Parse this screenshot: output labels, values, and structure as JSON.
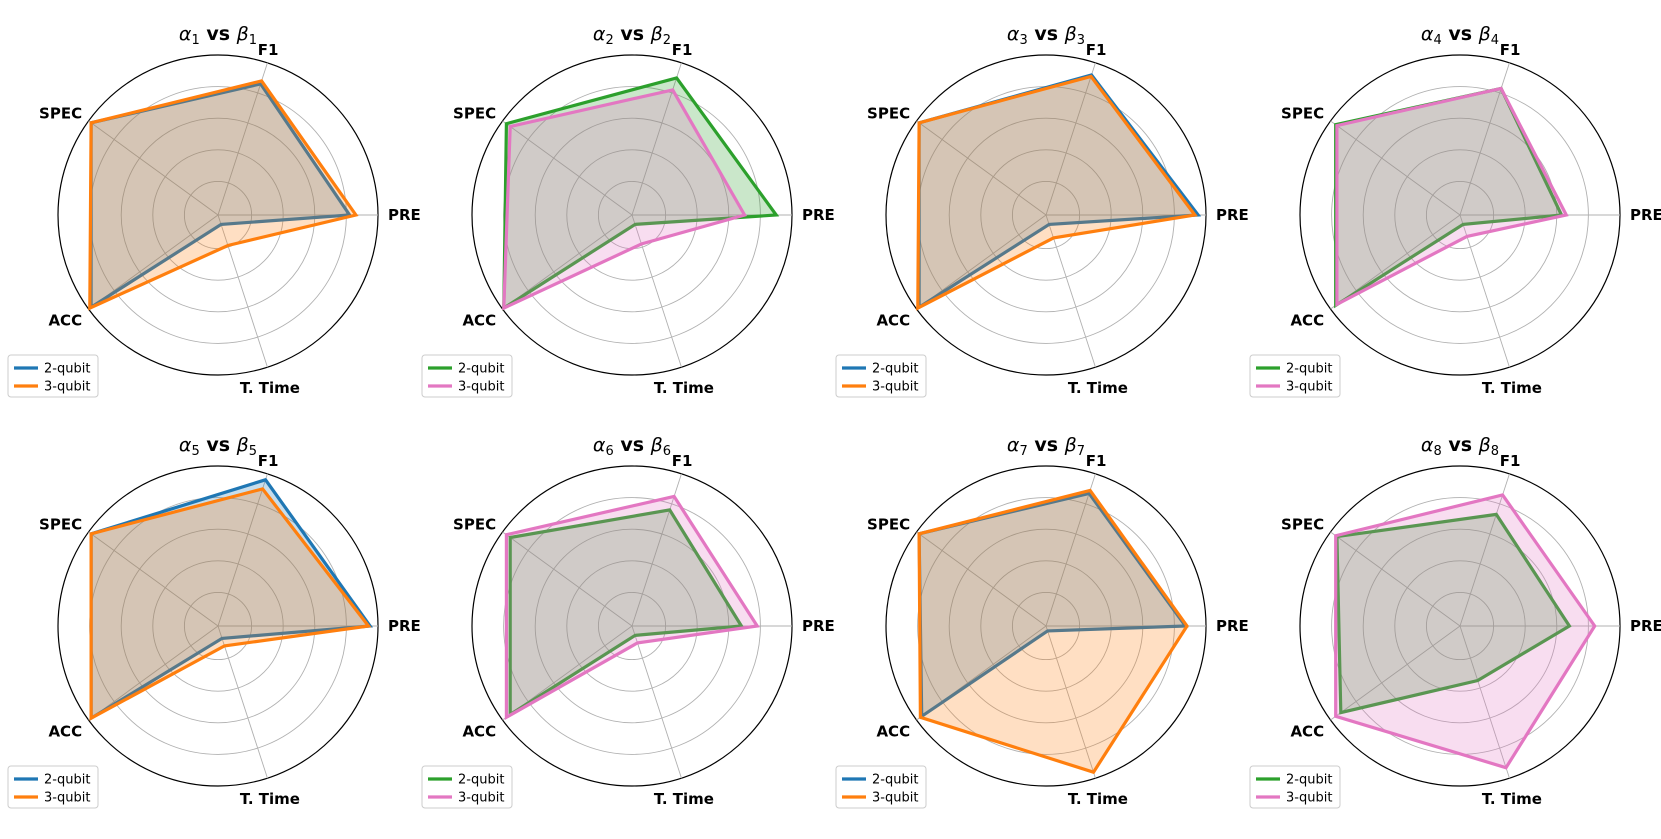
{
  "figure": {
    "axes_labels": [
      "PRE",
      "F1",
      "SPEC",
      "ACC",
      "T. Time"
    ],
    "colors": {
      "blue": "#1f77b4",
      "orange": "#ff7f0e",
      "green": "#2ca02c",
      "pink": "#e377c2",
      "grid": "#b0b0b0"
    }
  },
  "chart_data": [
    {
      "type": "radar",
      "title_alpha": "α",
      "title_alpha_sub": "1",
      "title_vs": "vs",
      "title_beta": "β",
      "title_beta_sub": "1",
      "categories": [
        "PRE",
        "F1",
        "SPEC",
        "ACC",
        "T. Time"
      ],
      "rlim": [
        0,
        1
      ],
      "gridlines": [
        0.2,
        0.4,
        0.6,
        0.8
      ],
      "series": [
        {
          "name": "2-qubit",
          "color": "#1f77b4",
          "values": [
            0.82,
            0.86,
            0.98,
            0.98,
            0.05
          ]
        },
        {
          "name": "3-qubit",
          "color": "#ff7f0e",
          "values": [
            0.86,
            0.88,
            0.98,
            0.99,
            0.19
          ]
        }
      ]
    },
    {
      "type": "radar",
      "title_alpha": "α",
      "title_alpha_sub": "2",
      "title_vs": "vs",
      "title_beta": "β",
      "title_beta_sub": "2",
      "categories": [
        "PRE",
        "F1",
        "SPEC",
        "ACC",
        "T. Time"
      ],
      "rlim": [
        0,
        1
      ],
      "gridlines": [
        0.2,
        0.4,
        0.6,
        0.8
      ],
      "series": [
        {
          "name": "2-qubit",
          "color": "#2ca02c",
          "values": [
            0.9,
            0.9,
            0.97,
            0.99,
            0.05
          ]
        },
        {
          "name": "3-qubit",
          "color": "#e377c2",
          "values": [
            0.7,
            0.82,
            0.94,
            0.99,
            0.18
          ]
        }
      ]
    },
    {
      "type": "radar",
      "title_alpha": "α",
      "title_alpha_sub": "3",
      "title_vs": "vs",
      "title_beta": "β",
      "title_beta_sub": "3",
      "categories": [
        "PRE",
        "F1",
        "SPEC",
        "ACC",
        "T. Time"
      ],
      "rlim": [
        0,
        1
      ],
      "gridlines": [
        0.2,
        0.4,
        0.6,
        0.8
      ],
      "series": [
        {
          "name": "2-qubit",
          "color": "#1f77b4",
          "values": [
            0.95,
            0.92,
            0.98,
            0.98,
            0.05
          ]
        },
        {
          "name": "3-qubit",
          "color": "#ff7f0e",
          "values": [
            0.93,
            0.91,
            0.98,
            0.99,
            0.14
          ]
        }
      ]
    },
    {
      "type": "radar",
      "title_alpha": "α",
      "title_alpha_sub": "4",
      "title_vs": "vs",
      "title_beta": "β",
      "title_beta_sub": "4",
      "categories": [
        "PRE",
        "F1",
        "SPEC",
        "ACC",
        "T. Time"
      ],
      "rlim": [
        0,
        1
      ],
      "gridlines": [
        0.2,
        0.4,
        0.6,
        0.8
      ],
      "series": [
        {
          "name": "2-qubit",
          "color": "#2ca02c",
          "values": [
            0.63,
            0.83,
            0.96,
            0.96,
            0.05
          ]
        },
        {
          "name": "3-qubit",
          "color": "#e377c2",
          "values": [
            0.66,
            0.83,
            0.95,
            0.95,
            0.13
          ]
        }
      ]
    },
    {
      "type": "radar",
      "title_alpha": "α",
      "title_alpha_sub": "5",
      "title_vs": "vs",
      "title_beta": "β",
      "title_beta_sub": "5",
      "categories": [
        "PRE",
        "F1",
        "SPEC",
        "ACC",
        "T. Time"
      ],
      "rlim": [
        0,
        1
      ],
      "gridlines": [
        0.2,
        0.4,
        0.6,
        0.8
      ],
      "series": [
        {
          "name": "2-qubit",
          "color": "#1f77b4",
          "values": [
            0.95,
            0.96,
            0.98,
            0.98,
            0.07
          ]
        },
        {
          "name": "3-qubit",
          "color": "#ff7f0e",
          "values": [
            0.94,
            0.9,
            0.98,
            0.98,
            0.12
          ]
        }
      ]
    },
    {
      "type": "radar",
      "title_alpha": "α",
      "title_alpha_sub": "6",
      "title_vs": "vs",
      "title_beta": "β",
      "title_beta_sub": "6",
      "categories": [
        "PRE",
        "F1",
        "SPEC",
        "ACC",
        "T. Time"
      ],
      "rlim": [
        0,
        1
      ],
      "gridlines": [
        0.2,
        0.4,
        0.6,
        0.8
      ],
      "series": [
        {
          "name": "2-qubit",
          "color": "#2ca02c",
          "values": [
            0.68,
            0.76,
            0.94,
            0.94,
            0.05
          ]
        },
        {
          "name": "3-qubit",
          "color": "#e377c2",
          "values": [
            0.78,
            0.85,
            0.97,
            0.97,
            0.1
          ]
        }
      ]
    },
    {
      "type": "radar",
      "title_alpha": "α",
      "title_alpha_sub": "7",
      "title_vs": "vs",
      "title_beta": "β",
      "title_beta_sub": "7",
      "categories": [
        "PRE",
        "F1",
        "SPEC",
        "ACC",
        "T. Time"
      ],
      "rlim": [
        0,
        1
      ],
      "gridlines": [
        0.2,
        0.4,
        0.6,
        0.8
      ],
      "series": [
        {
          "name": "2-qubit",
          "color": "#1f77b4",
          "values": [
            0.87,
            0.87,
            0.98,
            0.96,
            0.02
          ]
        },
        {
          "name": "3-qubit",
          "color": "#ff7f0e",
          "values": [
            0.88,
            0.89,
            0.98,
            0.97,
            0.96
          ]
        }
      ]
    },
    {
      "type": "radar",
      "title_alpha": "α",
      "title_alpha_sub": "8",
      "title_vs": "vs",
      "title_beta": "β",
      "title_beta_sub": "8",
      "categories": [
        "PRE",
        "F1",
        "SPEC",
        "ACC",
        "T. Time"
      ],
      "rlim": [
        0,
        1
      ],
      "gridlines": [
        0.2,
        0.4,
        0.6,
        0.8
      ],
      "series": [
        {
          "name": "2-qubit",
          "color": "#2ca02c",
          "values": [
            0.68,
            0.73,
            0.95,
            0.92,
            0.35
          ]
        },
        {
          "name": "3-qubit",
          "color": "#e377c2",
          "values": [
            0.84,
            0.86,
            0.96,
            0.96,
            0.93
          ]
        }
      ]
    }
  ]
}
